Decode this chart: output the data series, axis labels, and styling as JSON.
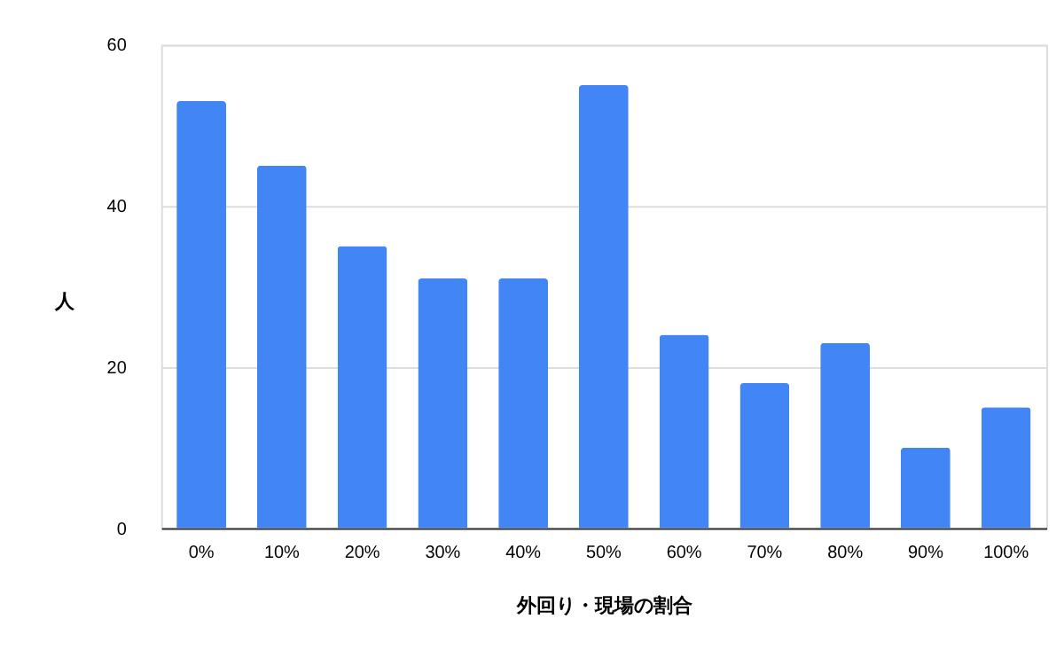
{
  "chart_data": {
    "type": "bar",
    "xlabel": "外回り・現場の割合",
    "ylabel": "人",
    "categories": [
      "0%",
      "10%",
      "20%",
      "30%",
      "40%",
      "50%",
      "60%",
      "70%",
      "80%",
      "90%",
      "100%"
    ],
    "series": [
      {
        "color": "#4285f4",
        "values": [
          53,
          45,
          35,
          31,
          31,
          55,
          24,
          18,
          23,
          10,
          15
        ]
      }
    ],
    "ylim": [
      0,
      60
    ],
    "yticks": [
      0,
      20,
      40,
      60
    ],
    "grid": "y",
    "legend": false
  }
}
